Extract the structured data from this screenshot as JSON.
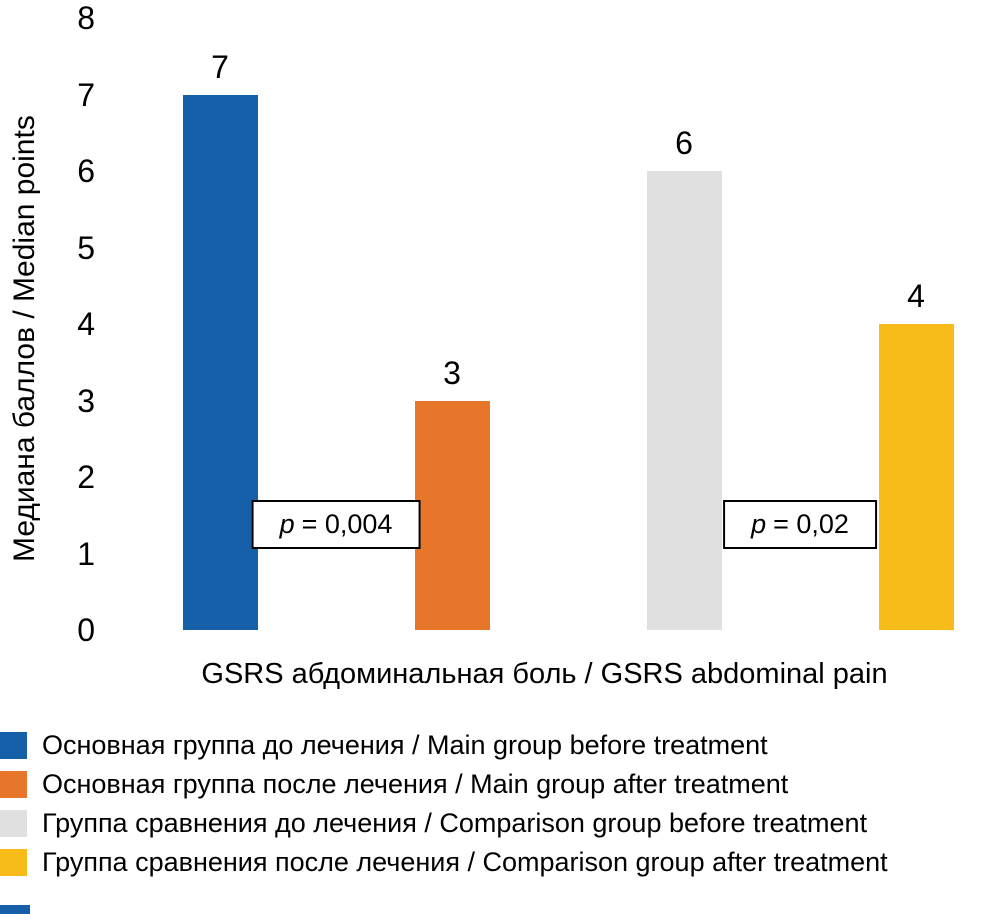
{
  "chart_data": {
    "type": "bar",
    "title": "",
    "xlabel": "GSRS абдоминальная боль / GSRS abdominal pain",
    "ylabel": "Медиана баллов / Median points",
    "ylim": [
      0,
      8
    ],
    "yticks": [
      0,
      1,
      2,
      3,
      4,
      5,
      6,
      7,
      8
    ],
    "grid": false,
    "legend_position": "bottom",
    "bars": [
      {
        "label": "Основная группа до лечения / Main group before treatment",
        "value": 7,
        "color": "#1560a9"
      },
      {
        "label": "Основная группа после лечения / Main group after treatment",
        "value": 3,
        "color": "#e8762a"
      },
      {
        "label": "Группа сравнения до лечения / Comparison group before treatment",
        "value": 6,
        "color": "#e0e0e0"
      },
      {
        "label": "Группа сравнения после лечения / Comparison group after treatment",
        "value": 4,
        "color": "#f7bc19"
      }
    ],
    "annotations": [
      {
        "symbol": "p",
        "text": "= 0,004",
        "between": [
          0,
          1
        ]
      },
      {
        "symbol": "p",
        "text": "= 0,02",
        "between": [
          2,
          3
        ]
      }
    ]
  }
}
